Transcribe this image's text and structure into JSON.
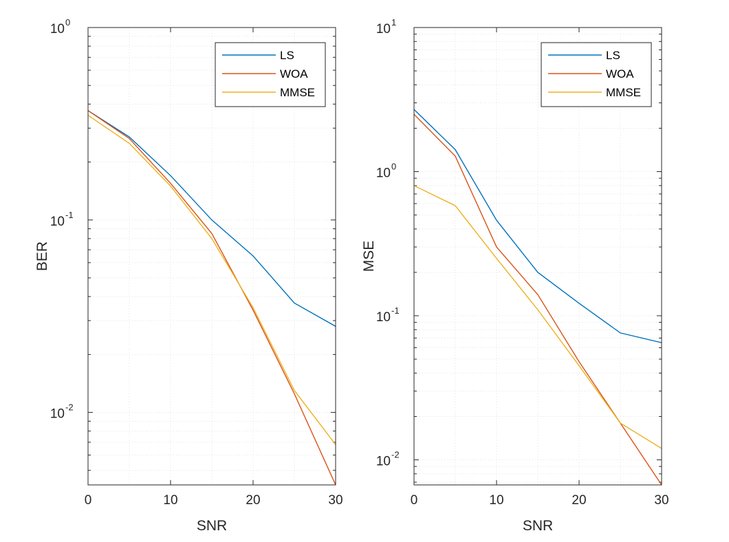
{
  "chart_data": [
    {
      "type": "line",
      "xlabel": "SNR",
      "ylabel": "BER",
      "xscale": "linear",
      "yscale": "log",
      "xlim": [
        0,
        30
      ],
      "ylim": [
        0.0042,
        1
      ],
      "xticks": [
        "0",
        "10",
        "20",
        "30"
      ],
      "ytick_base": "10",
      "ytick_exponents": [
        "0",
        "-1",
        "-2"
      ],
      "grid": "on (major and minor, faint dotted)",
      "legend_position": "top-right",
      "x": [
        0,
        5,
        10,
        15,
        20,
        25,
        30
      ],
      "series": [
        {
          "name": "LS",
          "color": "#0072BD",
          "values": [
            0.37,
            0.27,
            0.17,
            0.1,
            0.065,
            0.037,
            0.028
          ]
        },
        {
          "name": "WOA",
          "color": "#D95319",
          "values": [
            0.37,
            0.265,
            0.155,
            0.085,
            0.034,
            0.0125,
            0.0042
          ]
        },
        {
          "name": "MMSE",
          "color": "#EDB120",
          "values": [
            0.35,
            0.25,
            0.15,
            0.08,
            0.035,
            0.013,
            0.0068
          ]
        }
      ]
    },
    {
      "type": "line",
      "xlabel": "SNR",
      "ylabel": "MSE",
      "xscale": "linear",
      "yscale": "log",
      "xlim": [
        0,
        30
      ],
      "ylim": [
        0.0067,
        10
      ],
      "xticks": [
        "0",
        "10",
        "20",
        "30"
      ],
      "ytick_base": "10",
      "ytick_exponents": [
        "1",
        "0",
        "-1",
        "-2"
      ],
      "grid": "on (major and minor, faint dotted)",
      "legend_position": "top-right",
      "x": [
        0,
        5,
        10,
        15,
        20,
        25,
        30
      ],
      "series": [
        {
          "name": "LS",
          "color": "#0072BD",
          "values": [
            2.7,
            1.42,
            0.46,
            0.2,
            0.122,
            0.076,
            0.065
          ]
        },
        {
          "name": "WOA",
          "color": "#D95319",
          "values": [
            2.5,
            1.28,
            0.3,
            0.14,
            0.048,
            0.018,
            0.0067
          ]
        },
        {
          "name": "MMSE",
          "color": "#EDB120",
          "values": [
            0.8,
            0.58,
            0.25,
            0.11,
            0.045,
            0.018,
            0.012
          ]
        }
      ]
    }
  ]
}
